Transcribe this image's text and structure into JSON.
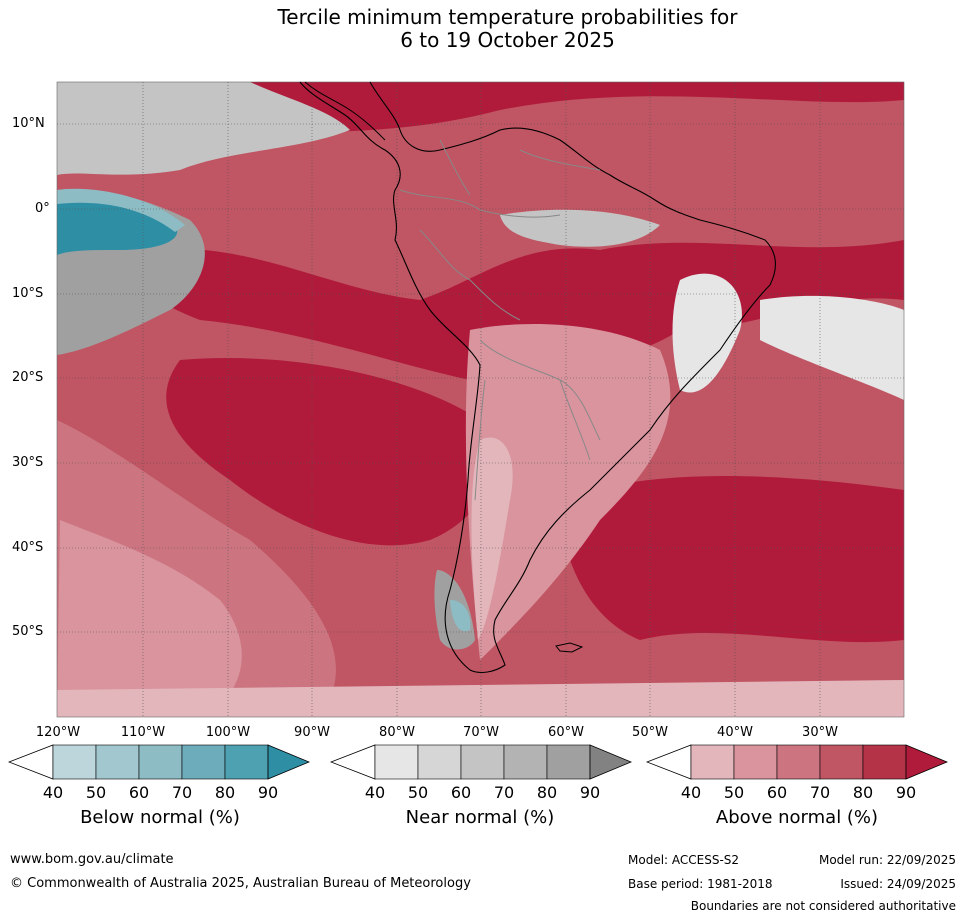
{
  "title": {
    "line1": "Tercile minimum temperature probabilities for",
    "line2": "6 to 19 October 2025"
  },
  "latitude_labels": [
    "10°N",
    "0°",
    "10°S",
    "20°S",
    "30°S",
    "40°S",
    "50°S"
  ],
  "longitude_labels": [
    "120°W",
    "110°W",
    "100°W",
    "90°W",
    "80°W",
    "70°W",
    "60°W",
    "50°W",
    "40°W",
    "30°W"
  ],
  "colorbars": [
    {
      "label": "Below normal (%)",
      "ticks": [
        "40",
        "50",
        "60",
        "70",
        "80",
        "90"
      ],
      "colors": [
        "#bcd6dc",
        "#a3c7ce",
        "#8dbcc5",
        "#6dadbb",
        "#4ea1b1",
        "#2e8ea4"
      ]
    },
    {
      "label": "Near normal (%)",
      "ticks": [
        "40",
        "50",
        "60",
        "70",
        "80",
        "90"
      ],
      "colors": [
        "#e6e6e6",
        "#d6d6d6",
        "#c4c4c4",
        "#b3b3b3",
        "#a0a0a0",
        "#828282"
      ]
    },
    {
      "label": "Above normal (%)",
      "ticks": [
        "40",
        "50",
        "60",
        "70",
        "80",
        "90"
      ],
      "colors": [
        "#e3b6bc",
        "#d9949e",
        "#cc7580",
        "#c05563",
        "#b53347",
        "#b01b3b"
      ]
    }
  ],
  "footer": {
    "url": "www.bom.gov.au/climate",
    "copyright": "© Commonwealth of Australia 2025, Australian Bureau of Meteorology",
    "model": "Model: ACCESS-S2",
    "base_period": "Base period: 1981-2018",
    "model_run": "Model run: 22/09/2025",
    "issued": "Issued: 24/09/2025",
    "disclaimer": "Boundaries are not considered authoritative"
  },
  "map_colors": {
    "above_90": "#b01b3b",
    "above_80": "#b53347",
    "above_70": "#c05563",
    "above_60": "#cc7580",
    "above_50": "#d9949e",
    "above_40": "#e3b6bc",
    "near_40": "#e6e6e6",
    "near_60": "#c4c4c4",
    "near_80": "#a0a0a0",
    "below_60": "#8dbcc5",
    "below_90": "#2e8ea4",
    "white": "#f2f2f2"
  }
}
